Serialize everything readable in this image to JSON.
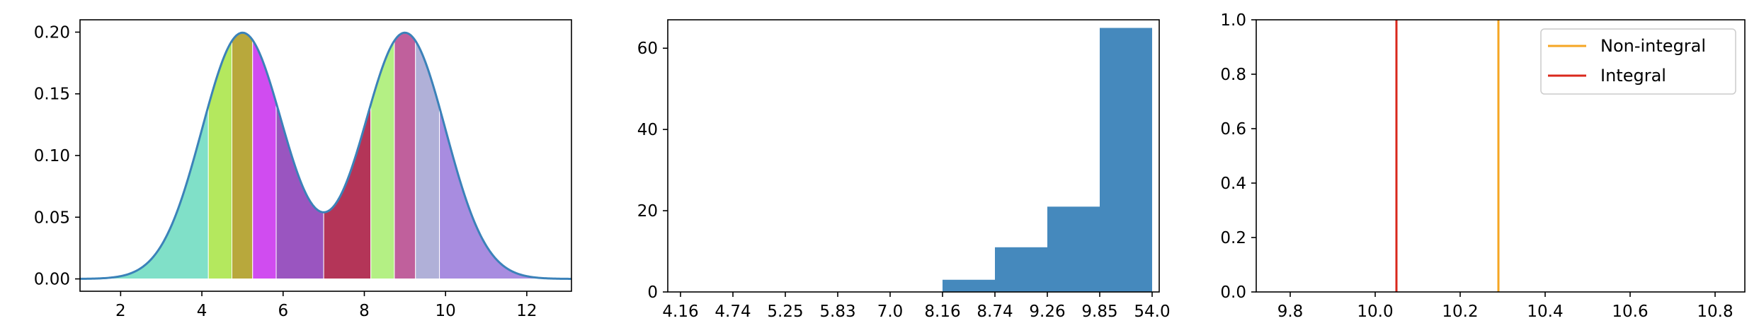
{
  "chart_data": [
    {
      "type": "area",
      "title": "",
      "xlabel": "",
      "ylabel": "",
      "xlim": [
        1.0,
        13.1
      ],
      "ylim": [
        -0.01,
        0.21
      ],
      "xticks": [
        2,
        4,
        6,
        8,
        10,
        12
      ],
      "xtick_labels": [
        "2",
        "4",
        "6",
        "8",
        "10",
        "12"
      ],
      "yticks": [
        0.0,
        0.05,
        0.1,
        0.15,
        0.2
      ],
      "ytick_labels": [
        "0.00",
        "0.05",
        "0.10",
        "0.15",
        "0.20"
      ],
      "curve": {
        "description": "mixture of two Gaussians",
        "components": [
          {
            "mean": 5.0,
            "sd": 1.0,
            "weight": 0.5
          },
          {
            "mean": 9.0,
            "sd": 1.0,
            "weight": 0.5
          }
        ],
        "color": "#3b82b9"
      },
      "shaded_bins": [
        {
          "from": 1.0,
          "to": 4.16,
          "color": "#80e0c8"
        },
        {
          "from": 4.16,
          "to": 4.74,
          "color": "#b4e85e"
        },
        {
          "from": 4.74,
          "to": 5.25,
          "color": "#b8a83c"
        },
        {
          "from": 5.25,
          "to": 5.83,
          "color": "#d04cf0"
        },
        {
          "from": 5.83,
          "to": 7.0,
          "color": "#9a55c0"
        },
        {
          "from": 7.0,
          "to": 8.16,
          "color": "#b43558"
        },
        {
          "from": 8.16,
          "to": 8.74,
          "color": "#b4f084"
        },
        {
          "from": 8.74,
          "to": 9.26,
          "color": "#c0609c"
        },
        {
          "from": 9.26,
          "to": 9.85,
          "color": "#b0b0d8"
        },
        {
          "from": 9.85,
          "to": 13.1,
          "color": "#a88ce0"
        }
      ]
    },
    {
      "type": "bar",
      "title": "",
      "xlabel": "",
      "ylabel": "",
      "categories": [
        "4.16",
        "4.74",
        "5.25",
        "5.83",
        "7.0",
        "8.16",
        "8.74",
        "9.26",
        "9.85",
        "54.0"
      ],
      "bins": [
        {
          "start_index": 0,
          "value": 0
        },
        {
          "start_index": 1,
          "value": 0
        },
        {
          "start_index": 2,
          "value": 0
        },
        {
          "start_index": 3,
          "value": 0
        },
        {
          "start_index": 4,
          "value": 0
        },
        {
          "start_index": 5,
          "value": 3
        },
        {
          "start_index": 6,
          "value": 11
        },
        {
          "start_index": 7,
          "value": 21
        },
        {
          "start_index": 8,
          "value": 65
        }
      ],
      "ylim": [
        0,
        67
      ],
      "yticks": [
        0,
        20,
        40,
        60
      ],
      "ytick_labels": [
        "0",
        "20",
        "40",
        "60"
      ],
      "color": "#4589bd"
    },
    {
      "type": "line",
      "title": "",
      "xlabel": "",
      "ylabel": "",
      "xlim": [
        9.72,
        10.87
      ],
      "ylim": [
        0.0,
        1.0
      ],
      "xticks": [
        9.8,
        10.0,
        10.2,
        10.4,
        10.6,
        10.8
      ],
      "xtick_labels": [
        "9.8",
        "10.0",
        "10.2",
        "10.4",
        "10.6",
        "10.8"
      ],
      "yticks": [
        0.0,
        0.2,
        0.4,
        0.6,
        0.8,
        1.0
      ],
      "ytick_labels": [
        "0.0",
        "0.2",
        "0.4",
        "0.6",
        "0.8",
        "1.0"
      ],
      "legend_position": "top-right",
      "series": [
        {
          "name": "Non-integral",
          "x": 10.29,
          "color": "#f5a623"
        },
        {
          "name": "Integral",
          "x": 10.05,
          "color": "#d9281c"
        }
      ]
    }
  ]
}
